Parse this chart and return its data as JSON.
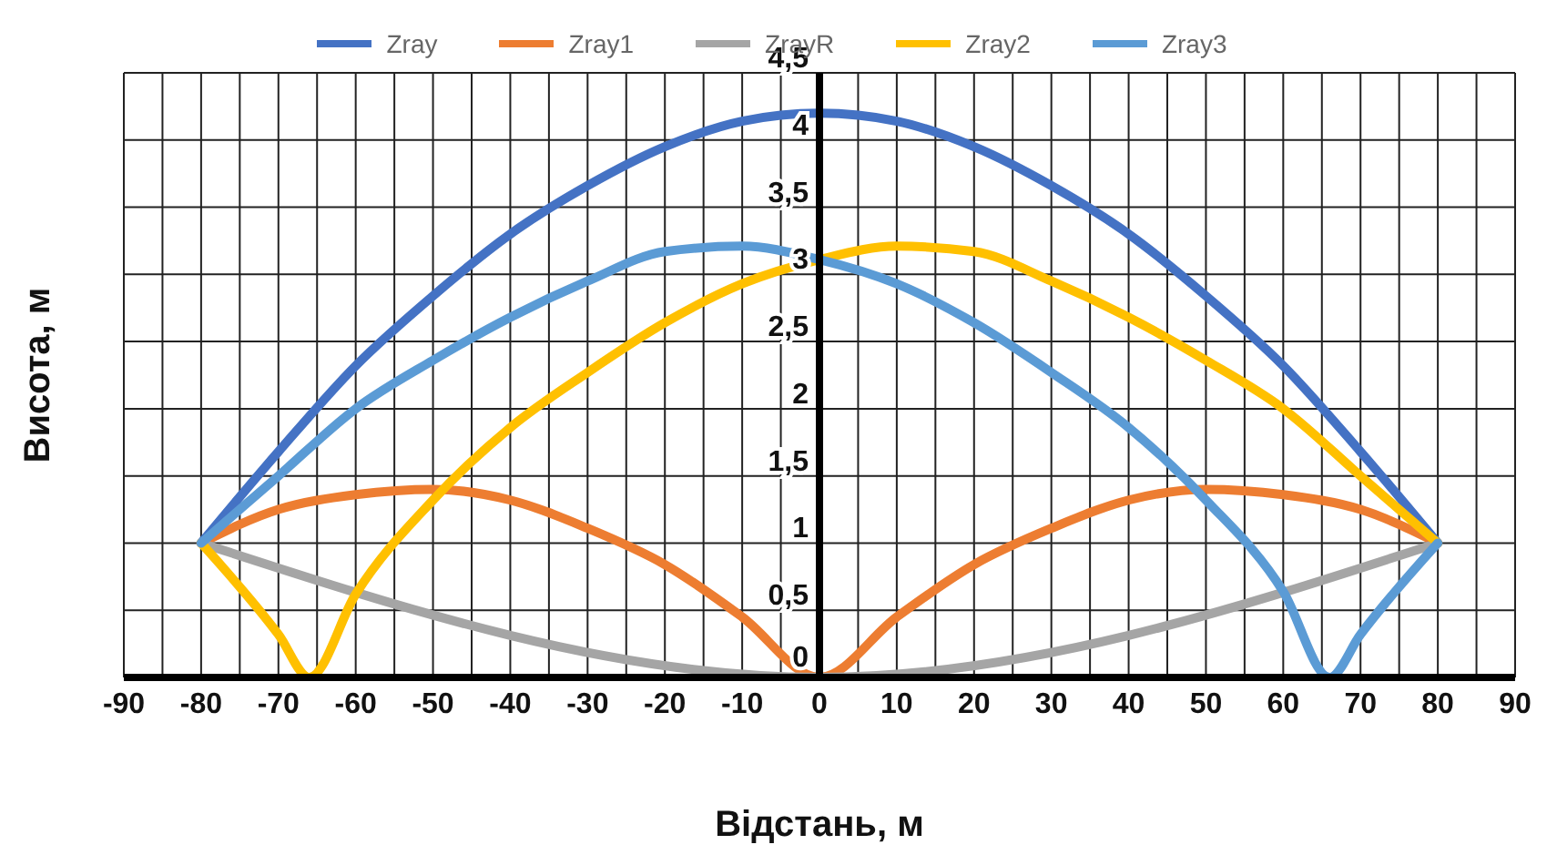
{
  "chart_data": {
    "type": "line",
    "xlabel": "Відстань, м",
    "ylabel": "Висота, м",
    "series": [
      {
        "name": "Zray",
        "color": "#4472c4",
        "x": [
          -80,
          -70,
          -60,
          -50,
          -40,
          -30,
          -20,
          -10,
          0,
          10,
          20,
          30,
          40,
          50,
          60,
          70,
          80
        ],
        "values": [
          1,
          1.68,
          2.32,
          2.84,
          3.3,
          3.66,
          3.95,
          4.14,
          4.2,
          4.14,
          3.95,
          3.66,
          3.3,
          2.84,
          2.32,
          1.68,
          1
        ]
      },
      {
        "name": "Zray1",
        "color": "#ed7d31",
        "x": [
          -80,
          -70,
          -60,
          -50,
          -40,
          -30,
          -20,
          -10,
          0,
          10,
          20,
          30,
          40,
          50,
          60,
          70,
          80
        ],
        "values": [
          1,
          1.25,
          1.36,
          1.4,
          1.32,
          1.11,
          0.84,
          0.45,
          0,
          0.45,
          0.84,
          1.11,
          1.32,
          1.4,
          1.36,
          1.25,
          1
        ]
      },
      {
        "name": "ZrayR",
        "color": "#a5a5a5",
        "x": [
          -80,
          0,
          80
        ],
        "values": [
          1,
          0,
          1
        ]
      },
      {
        "name": "Zray2",
        "color": "#ffc000",
        "x": [
          -80,
          -70,
          -66,
          -60,
          -50,
          -40,
          -30,
          -20,
          -10,
          0,
          10,
          20,
          30,
          40,
          50,
          60,
          70,
          80
        ],
        "values": [
          1,
          0.32,
          0,
          0.62,
          1.32,
          1.86,
          2.27,
          2.64,
          2.93,
          3.11,
          3.21,
          3.17,
          2.95,
          2.68,
          2.36,
          2.0,
          1.5,
          1
        ]
      },
      {
        "name": "Zray3",
        "color": "#5b9bd5",
        "x": [
          -80,
          -70,
          -60,
          -50,
          -40,
          -30,
          -20,
          -10,
          0,
          10,
          20,
          30,
          40,
          50,
          60,
          66,
          70,
          80
        ],
        "values": [
          1,
          1.5,
          2.0,
          2.36,
          2.68,
          2.95,
          3.17,
          3.21,
          3.11,
          2.93,
          2.64,
          2.27,
          1.86,
          1.32,
          0.64,
          0,
          0.32,
          1
        ]
      }
    ],
    "xlim": [
      -90,
      90
    ],
    "xticks": [
      -90,
      {
        "value": -85,
        "label": null
      },
      -80,
      {
        "value": -75,
        "label": null
      },
      -70,
      {
        "value": -65,
        "label": null
      },
      -60,
      {
        "value": -55,
        "label": null
      },
      -50,
      {
        "value": -45,
        "label": null
      },
      -40,
      {
        "value": -35,
        "label": null
      },
      -30,
      {
        "value": -25,
        "label": null
      },
      -20,
      {
        "value": -15,
        "label": null
      },
      -10,
      {
        "value": -5,
        "label": null
      },
      0,
      {
        "value": 5,
        "label": null
      },
      10,
      {
        "value": 15,
        "label": null
      },
      20,
      {
        "value": 25,
        "label": null
      },
      30,
      {
        "value": 35,
        "label": null
      },
      40,
      {
        "value": 45,
        "label": null
      },
      50,
      {
        "value": 55,
        "label": null
      },
      60,
      {
        "value": 65,
        "label": null
      },
      70,
      {
        "value": 75,
        "label": null
      },
      80,
      {
        "value": 85,
        "label": null
      },
      90
    ],
    "ylim": [
      0,
      4.5
    ],
    "yticks": [
      0,
      {
        "value": 0.5,
        "label": "0,5"
      },
      1,
      {
        "value": 1.5,
        "label": "1,5"
      },
      2,
      {
        "value": 2.5,
        "label": "2,5"
      },
      3,
      {
        "value": 3.5,
        "label": "3,5"
      },
      4,
      {
        "value": 4.5,
        "label": "4,5"
      }
    ],
    "grid": true,
    "legend": "top",
    "marker": "none",
    "line_style": "solid"
  }
}
